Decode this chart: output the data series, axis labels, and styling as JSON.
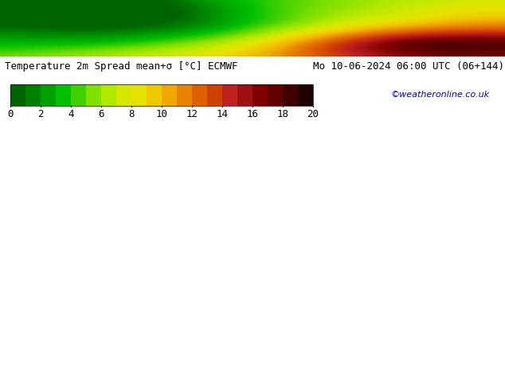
{
  "title_left": "Temperature 2m Spread mean+σ [°C] ECMWF",
  "title_right": "Mo 10-06-2024 06:00 UTC (06+144)",
  "credit": "©weatheronline.co.uk",
  "colorbar_ticks": [
    0,
    2,
    4,
    6,
    8,
    10,
    12,
    14,
    16,
    18,
    20
  ],
  "colorbar_colors": [
    "#006400",
    "#008000",
    "#00a000",
    "#00c000",
    "#40d000",
    "#80e000",
    "#b0e800",
    "#d4e800",
    "#e8e000",
    "#f0c800",
    "#f0a800",
    "#e88000",
    "#e06000",
    "#d04000",
    "#c02020",
    "#a01010",
    "#800000",
    "#600000",
    "#400000",
    "#200000"
  ],
  "map_bg_color": "#00c800",
  "fig_width": 6.34,
  "fig_height": 4.9,
  "dpi": 100,
  "colorbar_label_fontsize": 9,
  "title_fontsize": 9,
  "credit_color": "#0000cc",
  "credit_fontsize": 8
}
